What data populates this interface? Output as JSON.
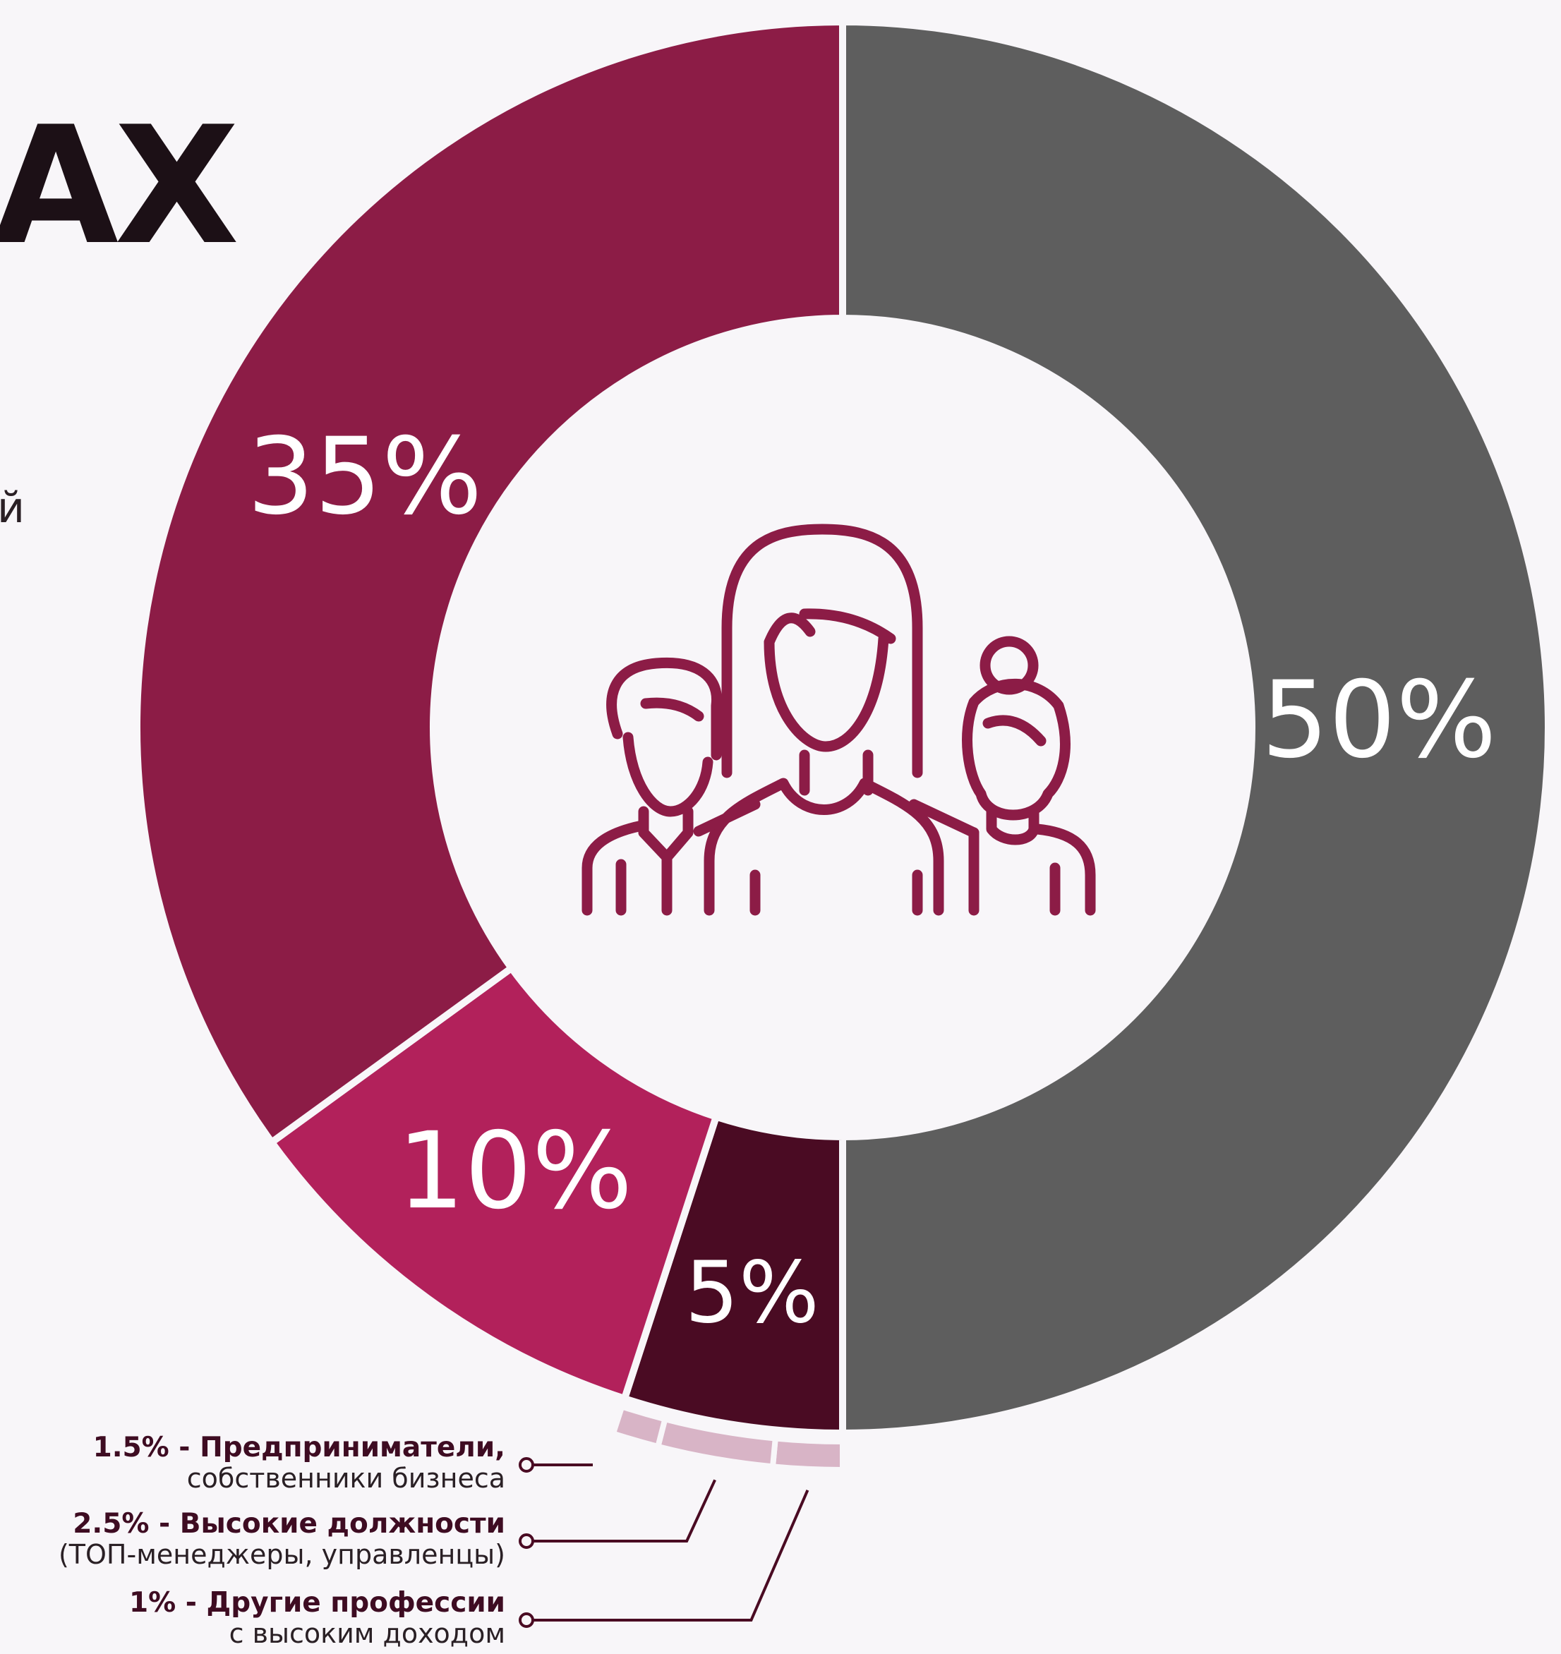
{
  "heading_fragment": "АХ",
  "side_fragment": "й",
  "chart_data": {
    "type": "pie",
    "variant": "donut",
    "center_icon": "people-group-icon",
    "slices": [
      {
        "value": 50,
        "label": "50%",
        "color": "#5e5e5e"
      },
      {
        "value": 5,
        "label": "5%",
        "color": "#4a0b23"
      },
      {
        "value": 10,
        "label": "10%",
        "color": "#b2215b"
      },
      {
        "value": 35,
        "label": "35%",
        "color": "#8c1c46"
      }
    ],
    "breakdown": [
      {
        "value": 1.5,
        "title": "1.5% - Предприниматели,",
        "subtitle": "собственники бизнеса",
        "color": "#d8b4c6"
      },
      {
        "value": 2.5,
        "title": "2.5% - Высокие должности",
        "subtitle": "(ТОП-менеджеры, управленцы)",
        "color": "#d8b4c6"
      },
      {
        "value": 1,
        "title": "1% - Другие профессии",
        "subtitle": "с высоким доходом",
        "color": "#d8b4c6"
      }
    ]
  },
  "colors": {
    "leader": "#4a0b23",
    "icon": "#8c1c46",
    "background": "#f8f6f9"
  }
}
